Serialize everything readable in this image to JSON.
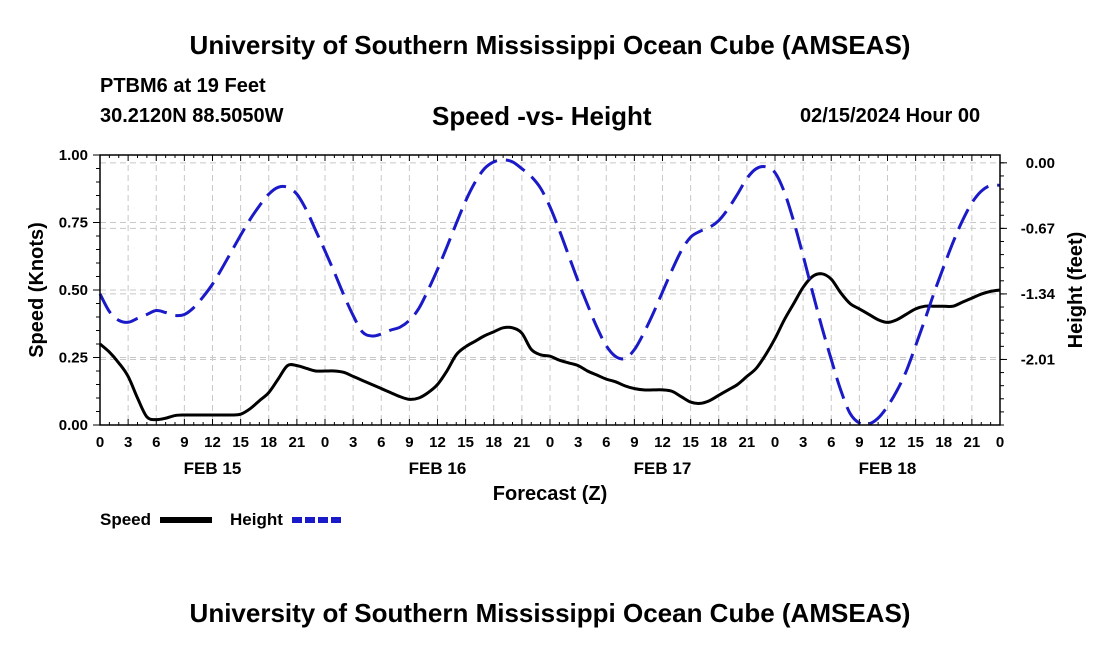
{
  "header": {
    "title_top": "University of Southern Mississippi Ocean Cube (AMSEAS)",
    "title_bottom": "University of Southern Mississippi Ocean Cube (AMSEAS)",
    "station": "PTBM6 at 19 Feet",
    "coords": "30.2120N  88.5050W",
    "datetime": "02/15/2024 Hour 00"
  },
  "chart_data": {
    "type": "line",
    "title": "Speed -vs- Height",
    "xlabel": "Forecast (Z)",
    "ylabel": "Speed (Knots)",
    "y2label": "Height (feet)",
    "grid": true,
    "x_range_hours": [
      0,
      96
    ],
    "x_tick_step_hours": 3,
    "x_tick_labels": [
      "0",
      "3",
      "6",
      "9",
      "12",
      "15",
      "18",
      "21",
      "0",
      "3",
      "6",
      "9",
      "12",
      "15",
      "18",
      "21",
      "0",
      "3",
      "6",
      "9",
      "12",
      "15",
      "18",
      "21",
      "0",
      "3",
      "6",
      "9",
      "12",
      "15",
      "18",
      "21",
      "0"
    ],
    "day_labels": [
      {
        "label": "FEB 15",
        "hour": 12
      },
      {
        "label": "FEB 16",
        "hour": 36
      },
      {
        "label": "FEB 17",
        "hour": 60
      },
      {
        "label": "FEB 18",
        "hour": 84
      }
    ],
    "y_left": {
      "range": [
        0,
        1
      ],
      "ticks": [
        0,
        0.25,
        0.5,
        0.75,
        1.0
      ],
      "tick_labels": [
        "0.00",
        "0.25",
        "0.50",
        "0.75",
        "1.00"
      ]
    },
    "y_right": {
      "range": [
        -2.68,
        0.08
      ],
      "ticks": [
        0,
        -0.67,
        -1.34,
        -2.01
      ],
      "tick_labels": [
        "0.00",
        "-0.67",
        "-1.34",
        "-2.01"
      ]
    },
    "series": [
      {
        "name": "Speed",
        "axis": "left",
        "color": "#000000",
        "dash": "solid",
        "x": [
          0,
          1,
          2,
          3,
          4,
          5,
          6,
          7,
          8,
          9,
          10,
          11,
          12,
          13,
          14,
          15,
          16,
          17,
          18,
          19,
          20,
          21,
          22,
          23,
          24,
          25,
          26,
          27,
          28,
          29,
          30,
          31,
          32,
          33,
          34,
          35,
          36,
          37,
          38,
          39,
          40,
          41,
          42,
          43,
          44,
          45,
          46,
          47,
          48,
          49,
          50,
          51,
          52,
          53,
          54,
          55,
          56,
          57,
          58,
          59,
          60,
          61,
          62,
          63,
          64,
          65,
          66,
          67,
          68,
          69,
          70,
          71,
          72,
          73,
          74,
          75,
          76,
          77,
          78,
          79,
          80,
          81,
          82,
          83,
          84,
          85,
          86,
          87,
          88,
          89,
          90,
          91,
          92,
          93,
          94,
          95,
          96
        ],
        "values": [
          0.3,
          0.27,
          0.23,
          0.18,
          0.1,
          0.03,
          0.02,
          0.025,
          0.035,
          0.037,
          0.037,
          0.037,
          0.037,
          0.037,
          0.037,
          0.04,
          0.06,
          0.09,
          0.12,
          0.17,
          0.22,
          0.22,
          0.21,
          0.2,
          0.2,
          0.2,
          0.195,
          0.18,
          0.165,
          0.15,
          0.135,
          0.12,
          0.105,
          0.095,
          0.1,
          0.12,
          0.15,
          0.2,
          0.26,
          0.29,
          0.31,
          0.33,
          0.345,
          0.36,
          0.36,
          0.34,
          0.28,
          0.26,
          0.255,
          0.24,
          0.23,
          0.22,
          0.2,
          0.185,
          0.17,
          0.16,
          0.145,
          0.135,
          0.13,
          0.13,
          0.13,
          0.125,
          0.105,
          0.085,
          0.08,
          0.09,
          0.11,
          0.13,
          0.15,
          0.18,
          0.21,
          0.26,
          0.32,
          0.39,
          0.45,
          0.51,
          0.55,
          0.56,
          0.54,
          0.49,
          0.45,
          0.43,
          0.41,
          0.39,
          0.38,
          0.39,
          0.41,
          0.43,
          0.44,
          0.44,
          0.44,
          0.44,
          0.455,
          0.47,
          0.485,
          0.495,
          0.5
        ]
      },
      {
        "name": "Height",
        "axis": "right",
        "color": "#1a1ac8",
        "dash": "dashed",
        "x": [
          0,
          1,
          2,
          3,
          4,
          5,
          6,
          7,
          8,
          9,
          10,
          11,
          12,
          13,
          14,
          15,
          16,
          17,
          18,
          19,
          20,
          21,
          22,
          23,
          24,
          25,
          26,
          27,
          28,
          29,
          30,
          31,
          32,
          33,
          34,
          35,
          36,
          37,
          38,
          39,
          40,
          41,
          42,
          43,
          44,
          45,
          46,
          47,
          48,
          49,
          50,
          51,
          52,
          53,
          54,
          55,
          56,
          57,
          58,
          59,
          60,
          61,
          62,
          63,
          64,
          65,
          66,
          67,
          68,
          69,
          70,
          71,
          72,
          73,
          74,
          75,
          76,
          77,
          78,
          79,
          80,
          81,
          82,
          83,
          84,
          85,
          86,
          87,
          88,
          89,
          90,
          91,
          92,
          93,
          94,
          95,
          96
        ],
        "values": [
          -1.34,
          -1.52,
          -1.61,
          -1.63,
          -1.59,
          -1.55,
          -1.51,
          -1.53,
          -1.56,
          -1.55,
          -1.48,
          -1.37,
          -1.24,
          -1.08,
          -0.91,
          -0.74,
          -0.58,
          -0.44,
          -0.32,
          -0.25,
          -0.25,
          -0.32,
          -0.48,
          -0.69,
          -0.9,
          -1.12,
          -1.35,
          -1.56,
          -1.73,
          -1.77,
          -1.75,
          -1.71,
          -1.68,
          -1.61,
          -1.49,
          -1.3,
          -1.09,
          -0.86,
          -0.62,
          -0.39,
          -0.2,
          -0.06,
          0.01,
          0.03,
          0.01,
          -0.06,
          -0.14,
          -0.26,
          -0.45,
          -0.69,
          -0.95,
          -1.21,
          -1.45,
          -1.68,
          -1.87,
          -1.98,
          -2.0,
          -1.91,
          -1.74,
          -1.54,
          -1.32,
          -1.1,
          -0.9,
          -0.76,
          -0.7,
          -0.66,
          -0.59,
          -0.47,
          -0.32,
          -0.16,
          -0.06,
          -0.04,
          -0.1,
          -0.3,
          -0.6,
          -0.95,
          -1.32,
          -1.68,
          -2.01,
          -2.32,
          -2.56,
          -2.66,
          -2.67,
          -2.61,
          -2.49,
          -2.33,
          -2.13,
          -1.87,
          -1.6,
          -1.32,
          -1.06,
          -0.81,
          -0.59,
          -0.41,
          -0.29,
          -0.23,
          -0.23
        ]
      }
    ]
  },
  "legend": {
    "items": [
      {
        "label": "Speed",
        "color": "#000000"
      },
      {
        "label": "Height",
        "color": "#1a1ac8"
      }
    ]
  }
}
